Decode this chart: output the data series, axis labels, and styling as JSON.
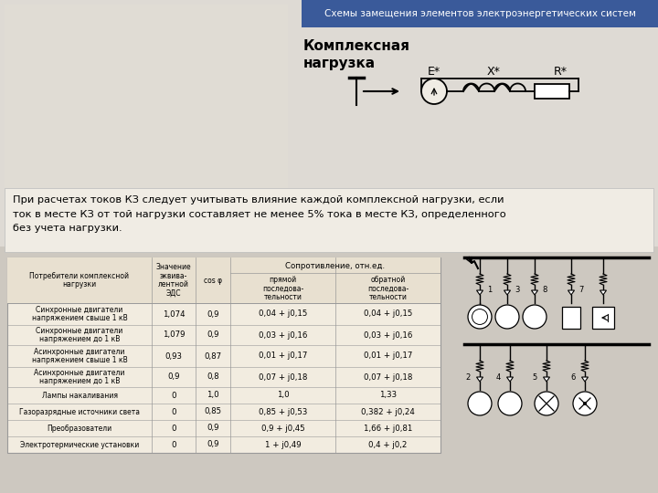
{
  "title_banner": "Схемы замещения элементов электроэнергетических систем",
  "title_banner_bg": "#3a5a9a",
  "title_banner_fg": "#ffffff",
  "section_title": "Комплексная\nнагрузка",
  "text_block": "При расчетах токов КЗ следует учитывать влияние каждой комплексной нагрузки, если\nток в месте КЗ от той нагрузки составляет не менее 5% тока в месте КЗ, определенного\nбез учета нагрузки.",
  "table_headers": [
    "Потребители комплексной\nнагрузки",
    "Значение\nэквива-\nлентной\nЭДС",
    "cos φ",
    "прямой\nпоследова-\nтельности",
    "обратной\nпоследова-\nтельности"
  ],
  "table_subheader": "Сопротивление, отн.ед.",
  "table_rows": [
    [
      "Синхронные двигатели\nнапряжением свыше 1 кВ",
      "1,074",
      "0,9",
      "0,04 + j0,15",
      "0,04 + j0,15"
    ],
    [
      "Синхронные двигатели\nнапряжением до 1 кВ",
      "1,079",
      "0,9",
      "0,03 + j0,16",
      "0,03 + j0,16"
    ],
    [
      "Асинхронные двигатели\nнапряжением свыше 1 кВ",
      "0,93",
      "0,87",
      "0,01 + j0,17",
      "0,01 + j0,17"
    ],
    [
      "Асинхронные двигатели\nнапряжением до 1 кВ",
      "0,9",
      "0,8",
      "0,07 + j0,18",
      "0,07 + j0,18"
    ],
    [
      "Лампы накаливания",
      "0",
      "1,0",
      "1,0",
      "1,33"
    ],
    [
      "Газоразрядные источники света",
      "0",
      "0,85",
      "0,85 + j0,53",
      "0,382 + j0,24"
    ],
    [
      "Преобразователи",
      "0",
      "0,9",
      "0,9 + j0,45",
      "1,66 + j0,81"
    ],
    [
      "Электротермические установки",
      "0",
      "0,9",
      "1 + j0,49",
      "0,4 + j0,2"
    ]
  ],
  "bg_color": "#cdc8c0",
  "table_bg": "#f2ece0",
  "table_header_bg": "#e8e0d0",
  "table_border": "#999999",
  "text_block_bg": "#f0ece4",
  "top_area_bg": "#dedad4"
}
